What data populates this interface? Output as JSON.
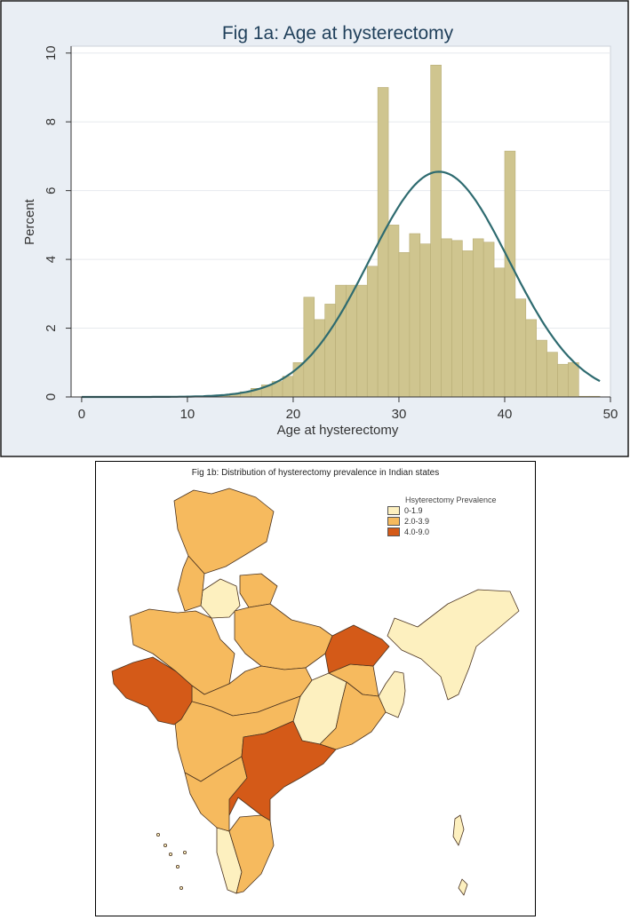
{
  "chart_data": [
    {
      "type": "bar",
      "title": "Fig 1a: Age at hysterectomy",
      "xlabel": "Age at hysterectomy",
      "ylabel": "Percent",
      "xlim": [
        -1,
        50
      ],
      "ylim": [
        0,
        10.2
      ],
      "xticks": [
        0,
        10,
        20,
        30,
        40,
        50
      ],
      "yticks": [
        0,
        2,
        4,
        6,
        8,
        10
      ],
      "grid": true,
      "bin_width": 1,
      "bins_start": [
        10,
        11,
        12,
        13,
        14,
        15,
        16,
        17,
        18,
        19,
        20,
        21,
        22,
        23,
        24,
        25,
        26,
        27,
        28,
        29,
        30,
        31,
        32,
        33,
        34,
        35,
        36,
        37,
        38,
        39,
        40,
        41,
        42,
        43,
        44,
        45,
        46,
        47,
        48
      ],
      "values": [
        0.02,
        0.02,
        0.03,
        0.04,
        0.1,
        0.15,
        0.25,
        0.35,
        0.45,
        0.6,
        1.0,
        2.9,
        2.25,
        2.7,
        3.25,
        3.25,
        3.25,
        3.8,
        9.0,
        5.0,
        4.2,
        4.75,
        4.45,
        9.65,
        4.6,
        4.55,
        4.25,
        4.6,
        4.5,
        3.75,
        7.15,
        2.85,
        2.25,
        1.65,
        1.3,
        0.95,
        1.0,
        0.02,
        0.02
      ],
      "normal_curve": {
        "mean": 33.8,
        "sd": 6.6,
        "peak": 6.55,
        "x_range": [
          0,
          49
        ]
      }
    },
    {
      "type": "choropleth",
      "title": "Fig 1b: Distribution of hysterectomy prevalence in Indian states",
      "legend": {
        "title": "Hsyterectomy Prevalence",
        "items": [
          {
            "label": "0-1.9",
            "color": "#fdf0bf"
          },
          {
            "label": "2.0-3.9",
            "color": "#f6ba5e"
          },
          {
            "label": "4.0-9.0",
            "color": "#d45a18"
          }
        ]
      }
    }
  ],
  "colors": {
    "panel_bg": "#e9eef4",
    "plot_bg": "#ffffff",
    "bar_fill": "#cfc58f",
    "bar_stroke": "#b8ad76",
    "curve": "#2e6b70",
    "title": "#1f3f5a"
  }
}
